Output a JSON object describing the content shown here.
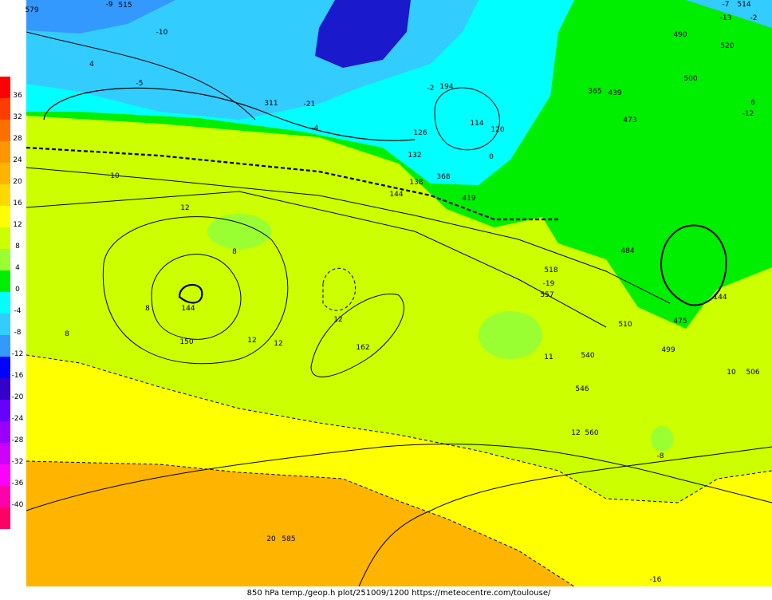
{
  "colorbar": {
    "labels": [
      36,
      32,
      28,
      24,
      20,
      16,
      12,
      8,
      4,
      0,
      -4,
      -8,
      -12,
      -16,
      -20,
      -24,
      -28,
      -32,
      -36,
      -40
    ],
    "colors": [
      "#ff0000",
      "#ff3c00",
      "#ff7000",
      "#ff9600",
      "#ffb400",
      "#ffd800",
      "#ffff00",
      "#ccff00",
      "#99ff33",
      "#00ee00",
      "#00ffff",
      "#33ccff",
      "#3399ff",
      "#0000ff",
      "#3300cc",
      "#6600ff",
      "#9900ff",
      "#cc00ff",
      "#ff00ff",
      "#ff00aa",
      "#ff0066"
    ]
  },
  "map": {
    "labels": [
      "144",
      "144",
      "144",
      "150",
      "162",
      "114",
      "120",
      "126",
      "132",
      "138",
      "12",
      "12",
      "12",
      "12",
      "8",
      "8",
      "8",
      "0",
      "-4",
      "-2",
      "10",
      "-16",
      "-8",
      "4",
      "-5",
      "-10",
      "20",
      "585",
      "560",
      "546",
      "12",
      "11",
      "-19",
      "557",
      "499",
      "475",
      "10",
      "506",
      "6",
      "-12",
      "579",
      "-9",
      "515",
      "-7",
      "514",
      "-13",
      "-2",
      "194",
      "368",
      "419",
      "311",
      "-21",
      "520",
      "490",
      "500",
      "473",
      "439",
      "365",
      "518",
      "540",
      "510",
      "484"
    ]
  },
  "footer": "850 hPa temp./geop.h plot/251009/1200 https://meteocentre.com/toulouse/"
}
